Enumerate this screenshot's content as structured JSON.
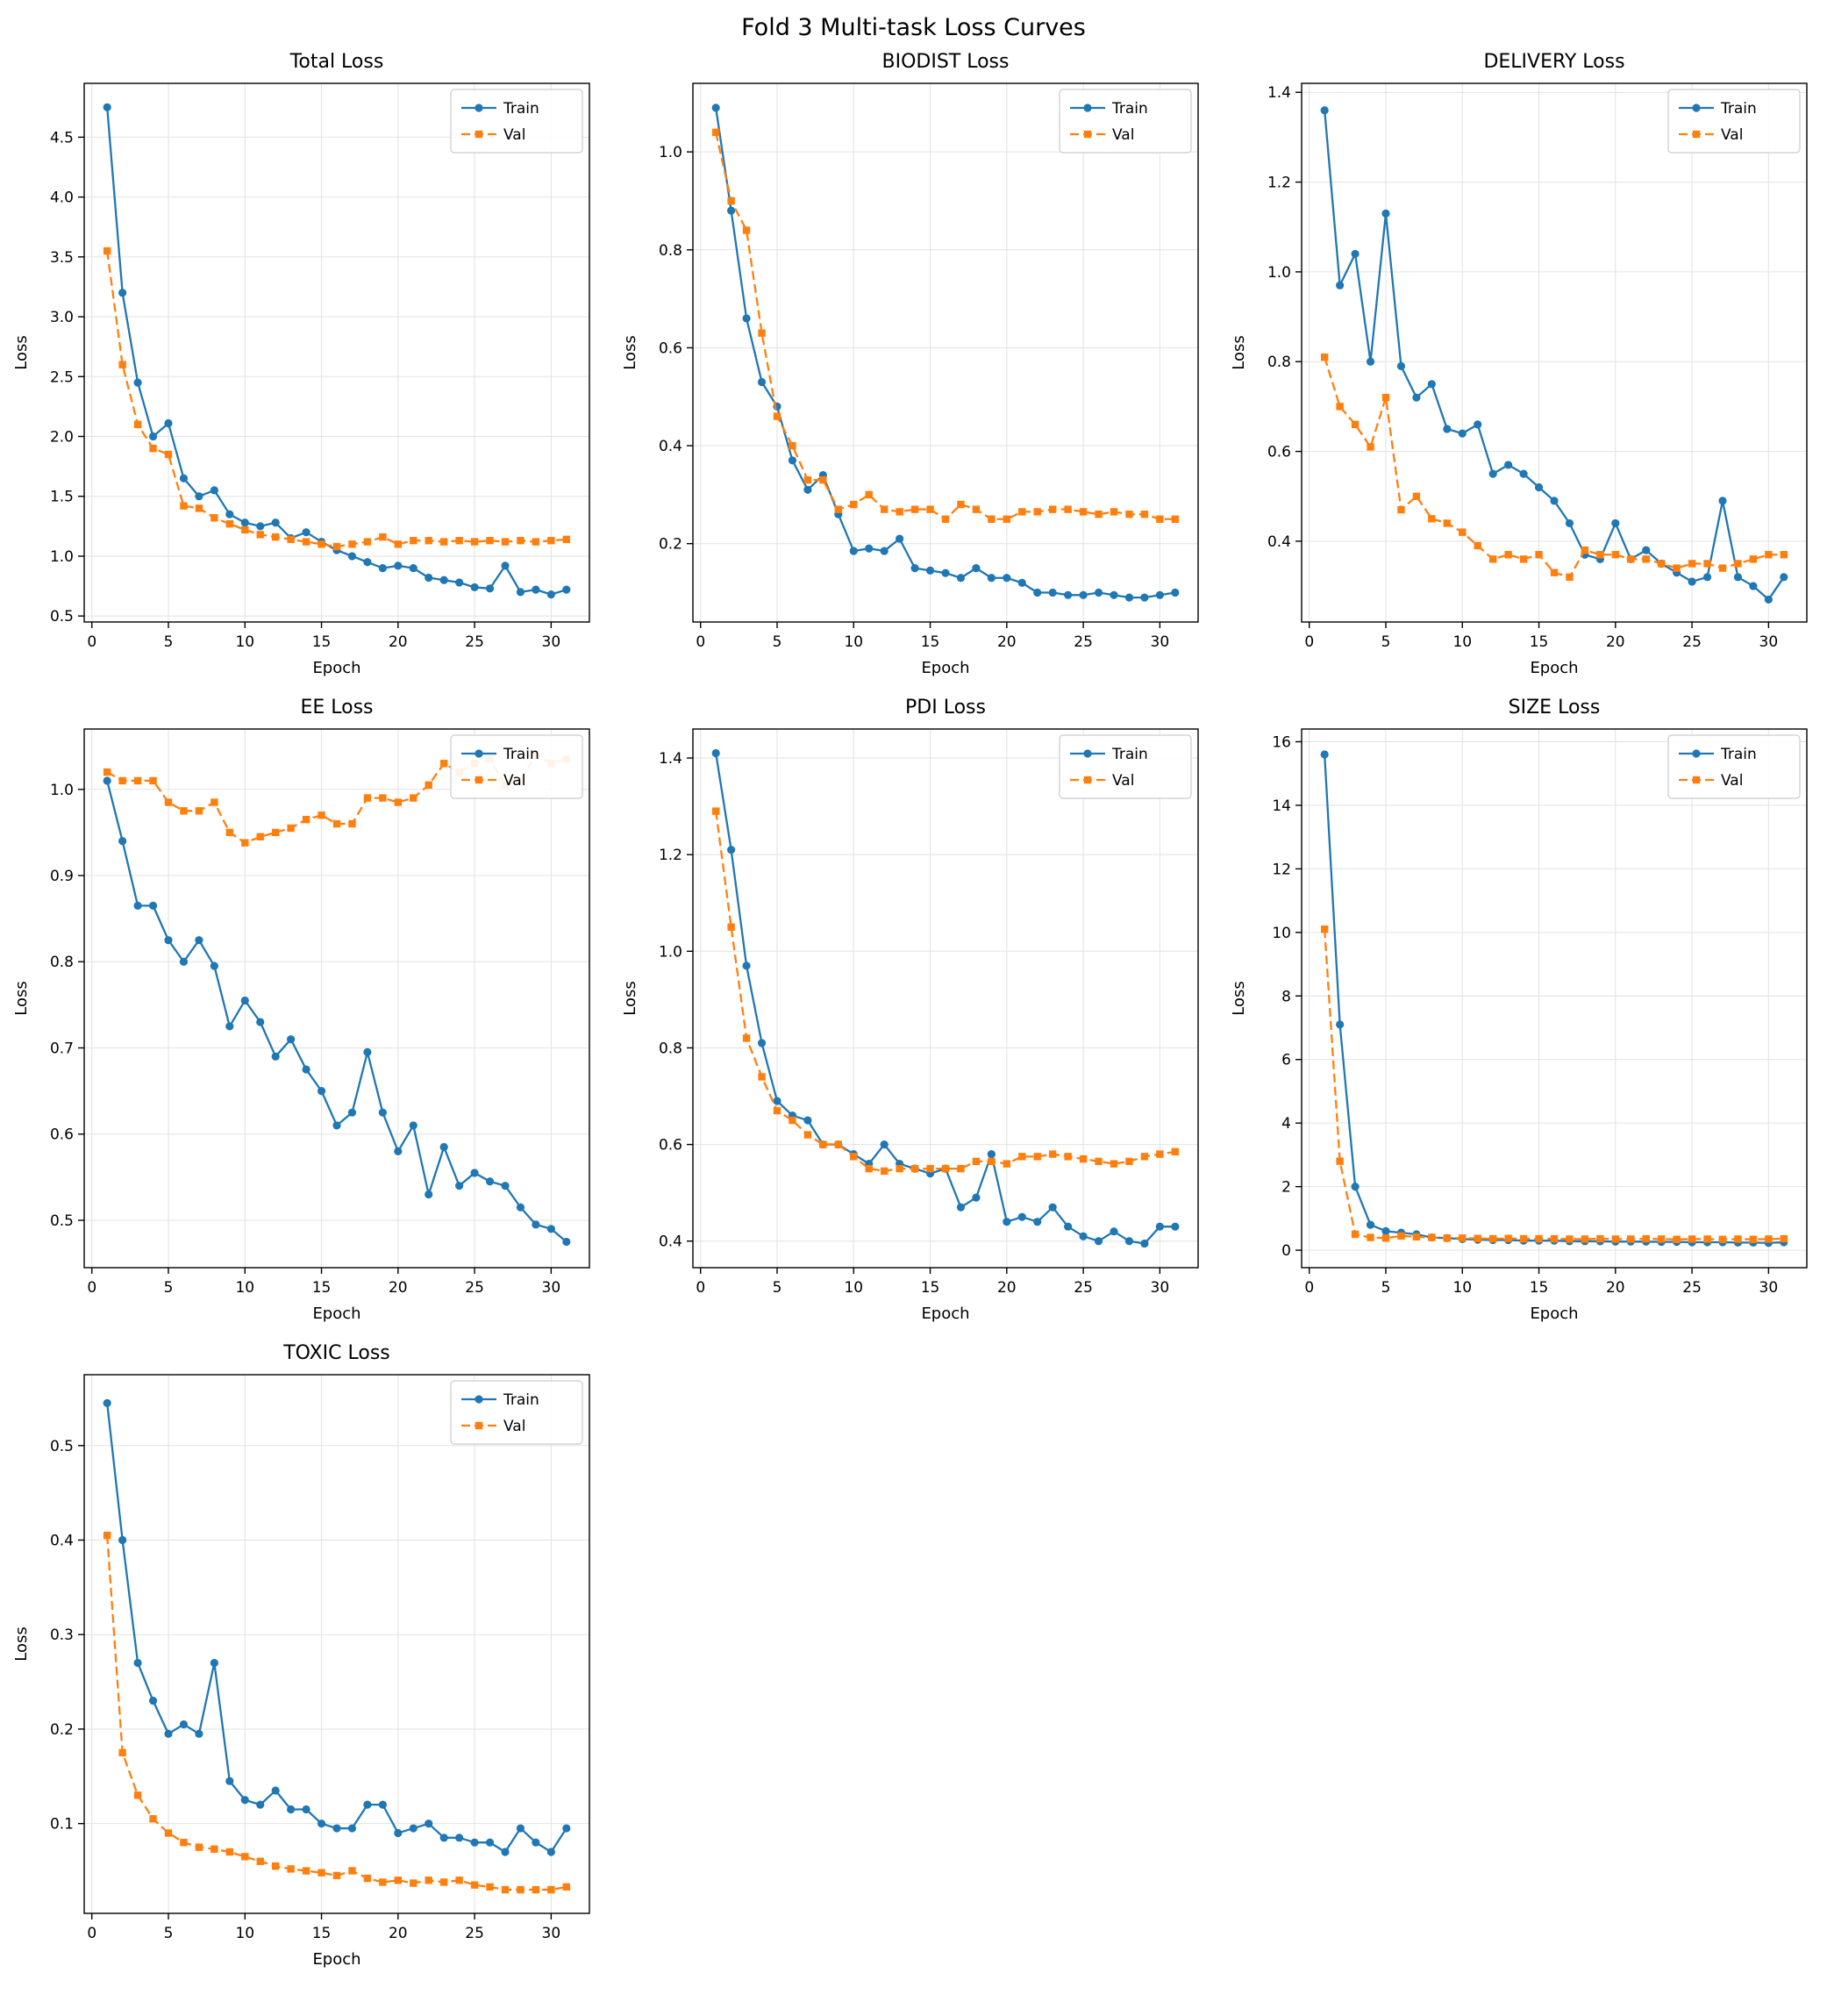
{
  "figure_title": "Fold 3 Multi-task Loss Curves",
  "colors": {
    "train": "#1f77b4",
    "val": "#ff7f0e",
    "grid": "#e2e2e2",
    "spine": "#000000",
    "legend_border": "#cccccc"
  },
  "axis_labels": {
    "xlabel": "Epoch",
    "ylabel": "Loss"
  },
  "legend_labels": {
    "train": "Train",
    "val": "Val"
  },
  "epochs": [
    1,
    2,
    3,
    4,
    5,
    6,
    7,
    8,
    9,
    10,
    11,
    12,
    13,
    14,
    15,
    16,
    17,
    18,
    19,
    20,
    21,
    22,
    23,
    24,
    25,
    26,
    27,
    28,
    29,
    30,
    31
  ],
  "chart_data": [
    {
      "type": "line",
      "title": "Total Loss",
      "xlabel": "Epoch",
      "ylabel": "Loss",
      "xlim": [
        -0.5,
        32.5
      ],
      "xticks": [
        0,
        5,
        10,
        15,
        20,
        25,
        30
      ],
      "ylim": [
        0.45,
        4.95
      ],
      "yticks": [
        0.5,
        1.0,
        1.5,
        2.0,
        2.5,
        3.0,
        3.5,
        4.0,
        4.5
      ],
      "ytick_decimals": 1,
      "legend_position": "top-right",
      "series": [
        {
          "name": "Train",
          "color": "#1f77b4",
          "style": "solid",
          "marker": "circle",
          "values": [
            4.75,
            3.2,
            2.45,
            2.0,
            2.11,
            1.65,
            1.5,
            1.55,
            1.35,
            1.28,
            1.25,
            1.28,
            1.15,
            1.2,
            1.12,
            1.05,
            1.0,
            0.95,
            0.9,
            0.92,
            0.9,
            0.82,
            0.8,
            0.78,
            0.74,
            0.73,
            0.92,
            0.7,
            0.72,
            0.68,
            0.72
          ]
        },
        {
          "name": "Val",
          "color": "#ff7f0e",
          "style": "dashed",
          "marker": "square",
          "values": [
            3.55,
            2.6,
            2.1,
            1.9,
            1.85,
            1.42,
            1.4,
            1.32,
            1.27,
            1.22,
            1.18,
            1.16,
            1.14,
            1.12,
            1.1,
            1.08,
            1.1,
            1.12,
            1.16,
            1.1,
            1.13,
            1.13,
            1.12,
            1.13,
            1.12,
            1.13,
            1.12,
            1.13,
            1.12,
            1.13,
            1.14
          ]
        }
      ]
    },
    {
      "type": "line",
      "title": "BIODIST Loss",
      "xlabel": "Epoch",
      "ylabel": "Loss",
      "xlim": [
        -0.5,
        32.5
      ],
      "xticks": [
        0,
        5,
        10,
        15,
        20,
        25,
        30
      ],
      "ylim": [
        0.04,
        1.14
      ],
      "yticks": [
        0.2,
        0.4,
        0.6,
        0.8,
        1.0
      ],
      "ytick_decimals": 1,
      "legend_position": "top-right",
      "series": [
        {
          "name": "Train",
          "color": "#1f77b4",
          "style": "solid",
          "marker": "circle",
          "values": [
            1.09,
            0.88,
            0.66,
            0.53,
            0.48,
            0.37,
            0.31,
            0.34,
            0.26,
            0.185,
            0.19,
            0.185,
            0.21,
            0.15,
            0.145,
            0.14,
            0.13,
            0.15,
            0.13,
            0.13,
            0.12,
            0.1,
            0.1,
            0.095,
            0.095,
            0.1,
            0.095,
            0.09,
            0.09,
            0.095,
            0.1
          ]
        },
        {
          "name": "Val",
          "color": "#ff7f0e",
          "style": "dashed",
          "marker": "square",
          "values": [
            1.04,
            0.9,
            0.84,
            0.63,
            0.46,
            0.4,
            0.33,
            0.33,
            0.27,
            0.28,
            0.3,
            0.27,
            0.265,
            0.27,
            0.27,
            0.25,
            0.28,
            0.27,
            0.25,
            0.25,
            0.265,
            0.265,
            0.27,
            0.27,
            0.265,
            0.26,
            0.265,
            0.26,
            0.26,
            0.25,
            0.25
          ]
        }
      ]
    },
    {
      "type": "line",
      "title": "DELIVERY Loss",
      "xlabel": "Epoch",
      "ylabel": "Loss",
      "xlim": [
        -0.5,
        32.5
      ],
      "xticks": [
        0,
        5,
        10,
        15,
        20,
        25,
        30
      ],
      "ylim": [
        0.22,
        1.42
      ],
      "yticks": [
        0.4,
        0.6,
        0.8,
        1.0,
        1.2,
        1.4
      ],
      "ytick_decimals": 1,
      "legend_position": "top-right",
      "series": [
        {
          "name": "Train",
          "color": "#1f77b4",
          "style": "solid",
          "marker": "circle",
          "values": [
            1.36,
            0.97,
            1.04,
            0.8,
            1.13,
            0.79,
            0.72,
            0.75,
            0.65,
            0.64,
            0.66,
            0.55,
            0.57,
            0.55,
            0.52,
            0.49,
            0.44,
            0.37,
            0.36,
            0.44,
            0.36,
            0.38,
            0.35,
            0.33,
            0.31,
            0.32,
            0.49,
            0.32,
            0.3,
            0.27,
            0.32
          ]
        },
        {
          "name": "Val",
          "color": "#ff7f0e",
          "style": "dashed",
          "marker": "square",
          "values": [
            0.81,
            0.7,
            0.66,
            0.61,
            0.72,
            0.47,
            0.5,
            0.45,
            0.44,
            0.42,
            0.39,
            0.36,
            0.37,
            0.36,
            0.37,
            0.33,
            0.32,
            0.38,
            0.37,
            0.37,
            0.36,
            0.36,
            0.35,
            0.34,
            0.35,
            0.35,
            0.34,
            0.35,
            0.36,
            0.37,
            0.37
          ]
        }
      ]
    },
    {
      "type": "line",
      "title": "EE Loss",
      "xlabel": "Epoch",
      "ylabel": "Loss",
      "xlim": [
        -0.5,
        32.5
      ],
      "xticks": [
        0,
        5,
        10,
        15,
        20,
        25,
        30
      ],
      "ylim": [
        0.445,
        1.07
      ],
      "yticks": [
        0.5,
        0.6,
        0.7,
        0.8,
        0.9,
        1.0
      ],
      "ytick_decimals": 1,
      "legend_position": "top-right",
      "series": [
        {
          "name": "Train",
          "color": "#1f77b4",
          "style": "solid",
          "marker": "circle",
          "values": [
            1.01,
            0.94,
            0.865,
            0.865,
            0.825,
            0.8,
            0.825,
            0.795,
            0.725,
            0.755,
            0.73,
            0.69,
            0.71,
            0.675,
            0.65,
            0.61,
            0.625,
            0.695,
            0.625,
            0.58,
            0.61,
            0.53,
            0.585,
            0.54,
            0.555,
            0.545,
            0.54,
            0.515,
            0.495,
            0.49,
            0.475
          ]
        },
        {
          "name": "Val",
          "color": "#ff7f0e",
          "style": "dashed",
          "marker": "square",
          "values": [
            1.02,
            1.01,
            1.01,
            1.01,
            0.985,
            0.975,
            0.975,
            0.985,
            0.95,
            0.938,
            0.945,
            0.95,
            0.955,
            0.965,
            0.97,
            0.96,
            0.96,
            0.99,
            0.99,
            0.985,
            0.99,
            1.005,
            1.03,
            1.02,
            1.03,
            1.035,
            1.005,
            1.01,
            1.04,
            1.03,
            1.035
          ]
        }
      ]
    },
    {
      "type": "line",
      "title": "PDI Loss",
      "xlabel": "Epoch",
      "ylabel": "Loss",
      "xlim": [
        -0.5,
        32.5
      ],
      "xticks": [
        0,
        5,
        10,
        15,
        20,
        25,
        30
      ],
      "ylim": [
        0.345,
        1.46
      ],
      "yticks": [
        0.4,
        0.6,
        0.8,
        1.0,
        1.2,
        1.4
      ],
      "ytick_decimals": 1,
      "legend_position": "top-right",
      "series": [
        {
          "name": "Train",
          "color": "#1f77b4",
          "style": "solid",
          "marker": "circle",
          "values": [
            1.41,
            1.21,
            0.97,
            0.81,
            0.69,
            0.66,
            0.65,
            0.6,
            0.6,
            0.58,
            0.56,
            0.6,
            0.56,
            0.55,
            0.54,
            0.55,
            0.47,
            0.49,
            0.58,
            0.44,
            0.45,
            0.44,
            0.47,
            0.43,
            0.41,
            0.4,
            0.42,
            0.4,
            0.395,
            0.43,
            0.43
          ]
        },
        {
          "name": "Val",
          "color": "#ff7f0e",
          "style": "dashed",
          "marker": "square",
          "values": [
            1.29,
            1.05,
            0.82,
            0.74,
            0.67,
            0.65,
            0.62,
            0.6,
            0.6,
            0.575,
            0.55,
            0.545,
            0.55,
            0.55,
            0.55,
            0.55,
            0.55,
            0.565,
            0.565,
            0.56,
            0.575,
            0.575,
            0.58,
            0.575,
            0.57,
            0.565,
            0.56,
            0.565,
            0.575,
            0.58,
            0.585
          ]
        }
      ]
    },
    {
      "type": "line",
      "title": "SIZE Loss",
      "xlabel": "Epoch",
      "ylabel": "Loss",
      "xlim": [
        -0.5,
        32.5
      ],
      "xticks": [
        0,
        5,
        10,
        15,
        20,
        25,
        30
      ],
      "ylim": [
        -0.55,
        16.4
      ],
      "yticks": [
        0,
        2,
        4,
        6,
        8,
        10,
        12,
        14,
        16
      ],
      "ytick_decimals": 0,
      "legend_position": "top-right",
      "series": [
        {
          "name": "Train",
          "color": "#1f77b4",
          "style": "solid",
          "marker": "circle",
          "values": [
            15.6,
            7.1,
            2.0,
            0.8,
            0.6,
            0.55,
            0.5,
            0.4,
            0.38,
            0.35,
            0.33,
            0.32,
            0.32,
            0.3,
            0.3,
            0.3,
            0.28,
            0.28,
            0.28,
            0.27,
            0.27,
            0.27,
            0.26,
            0.26,
            0.25,
            0.25,
            0.25,
            0.24,
            0.24,
            0.23,
            0.25
          ]
        },
        {
          "name": "Val",
          "color": "#ff7f0e",
          "style": "dashed",
          "marker": "square",
          "values": [
            10.1,
            2.8,
            0.5,
            0.4,
            0.38,
            0.45,
            0.42,
            0.4,
            0.38,
            0.38,
            0.37,
            0.36,
            0.37,
            0.36,
            0.36,
            0.36,
            0.35,
            0.35,
            0.36,
            0.35,
            0.35,
            0.36,
            0.35,
            0.34,
            0.35,
            0.35,
            0.34,
            0.35,
            0.34,
            0.35,
            0.36
          ]
        }
      ]
    },
    {
      "type": "line",
      "title": "TOXIC Loss",
      "xlabel": "Epoch",
      "ylabel": "Loss",
      "xlim": [
        -0.5,
        32.5
      ],
      "xticks": [
        0,
        5,
        10,
        15,
        20,
        25,
        30
      ],
      "ylim": [
        0.005,
        0.575
      ],
      "yticks": [
        0.1,
        0.2,
        0.3,
        0.4,
        0.5
      ],
      "ytick_decimals": 1,
      "legend_position": "top-right",
      "series": [
        {
          "name": "Train",
          "color": "#1f77b4",
          "style": "solid",
          "marker": "circle",
          "values": [
            0.545,
            0.4,
            0.27,
            0.23,
            0.195,
            0.205,
            0.195,
            0.27,
            0.145,
            0.125,
            0.12,
            0.135,
            0.115,
            0.115,
            0.1,
            0.095,
            0.095,
            0.12,
            0.12,
            0.09,
            0.095,
            0.1,
            0.085,
            0.085,
            0.08,
            0.08,
            0.07,
            0.095,
            0.08,
            0.07,
            0.095
          ]
        },
        {
          "name": "Val",
          "color": "#ff7f0e",
          "style": "dashed",
          "marker": "square",
          "values": [
            0.405,
            0.175,
            0.13,
            0.105,
            0.09,
            0.08,
            0.075,
            0.073,
            0.07,
            0.065,
            0.06,
            0.055,
            0.052,
            0.05,
            0.048,
            0.045,
            0.05,
            0.042,
            0.038,
            0.04,
            0.037,
            0.04,
            0.038,
            0.04,
            0.035,
            0.033,
            0.03,
            0.03,
            0.03,
            0.03,
            0.033
          ]
        }
      ]
    }
  ]
}
